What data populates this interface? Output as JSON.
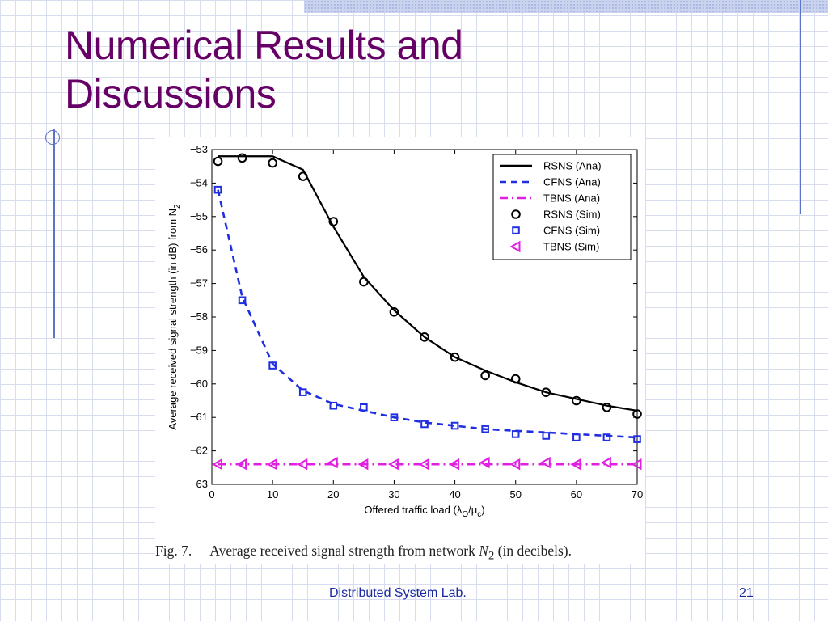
{
  "slide": {
    "title_line1": "Numerical Results and",
    "title_line2": "Discussions",
    "footer_center": "Distributed System Lab.",
    "page_number": "21"
  },
  "caption": {
    "fig_label": "Fig. 7.",
    "text_before": "Average received signal strength from network ",
    "network_symbol": "N",
    "network_subscript": "2",
    "text_after": " (in decibels)."
  },
  "colors": {
    "title": "#660066",
    "accent_lines": "#5b74c9",
    "rsns": "#000000",
    "cfns": "#1f2ee0",
    "tbns": "#e020e0"
  },
  "chart_data": {
    "type": "line",
    "xlabel_parts": [
      "Offered traffic load (λ",
      "O",
      "/μ",
      "c",
      ")"
    ],
    "ylabel_parts": [
      "Average received signal strength (in dB) from N",
      "2"
    ],
    "xlim": [
      0,
      70
    ],
    "ylim": [
      -63,
      -53
    ],
    "xticks": [
      "0",
      "10",
      "20",
      "30",
      "40",
      "50",
      "60",
      "70"
    ],
    "yticks": [
      "−53",
      "−54",
      "−55",
      "−56",
      "−57",
      "−58",
      "−59",
      "−60",
      "−61",
      "−62",
      "−63"
    ],
    "legend_position": "top-right",
    "series": [
      {
        "name": "RSNS (Ana)",
        "style": "solid",
        "color": "#000000",
        "x": [
          1,
          5,
          10,
          15,
          20,
          25,
          30,
          35,
          40,
          45,
          50,
          55,
          60,
          65,
          70
        ],
        "y": [
          -53.2,
          -53.2,
          -53.2,
          -53.6,
          -55.3,
          -56.8,
          -57.8,
          -58.6,
          -59.2,
          -59.6,
          -59.95,
          -60.25,
          -60.45,
          -60.65,
          -60.8
        ]
      },
      {
        "name": "CFNS (Ana)",
        "style": "dashed",
        "color": "#1f2ee0",
        "x": [
          1,
          5,
          10,
          15,
          20,
          25,
          30,
          35,
          40,
          45,
          50,
          55,
          60,
          65,
          70
        ],
        "y": [
          -54.2,
          -57.4,
          -59.4,
          -60.2,
          -60.6,
          -60.8,
          -61.0,
          -61.15,
          -61.25,
          -61.35,
          -61.4,
          -61.45,
          -61.5,
          -61.55,
          -61.6
        ]
      },
      {
        "name": "TBNS (Ana)",
        "style": "dashdot",
        "color": "#e020e0",
        "x": [
          1,
          70
        ],
        "y": [
          -62.4,
          -62.4
        ]
      },
      {
        "name": "RSNS (Sim)",
        "marker": "circle",
        "color": "#000000",
        "x": [
          1,
          5,
          10,
          15,
          20,
          25,
          30,
          35,
          40,
          45,
          50,
          55,
          60,
          65,
          70
        ],
        "y": [
          -53.35,
          -53.25,
          -53.4,
          -53.8,
          -55.15,
          -56.95,
          -57.85,
          -58.6,
          -59.2,
          -59.75,
          -59.85,
          -60.25,
          -60.5,
          -60.7,
          -60.9
        ]
      },
      {
        "name": "CFNS (Sim)",
        "marker": "square",
        "color": "#1f2ee0",
        "x": [
          1,
          5,
          10,
          15,
          20,
          25,
          30,
          35,
          40,
          45,
          50,
          55,
          60,
          65,
          70
        ],
        "y": [
          -54.2,
          -57.5,
          -59.45,
          -60.25,
          -60.65,
          -60.7,
          -61.0,
          -61.2,
          -61.25,
          -61.35,
          -61.5,
          -61.55,
          -61.6,
          -61.6,
          -61.65
        ]
      },
      {
        "name": "TBNS (Sim)",
        "marker": "triangle-left",
        "color": "#e020e0",
        "x": [
          1,
          5,
          10,
          15,
          20,
          25,
          30,
          35,
          40,
          45,
          50,
          55,
          60,
          65,
          70
        ],
        "y": [
          -62.4,
          -62.4,
          -62.4,
          -62.4,
          -62.35,
          -62.4,
          -62.4,
          -62.4,
          -62.4,
          -62.35,
          -62.4,
          -62.35,
          -62.4,
          -62.35,
          -62.4
        ]
      }
    ]
  }
}
